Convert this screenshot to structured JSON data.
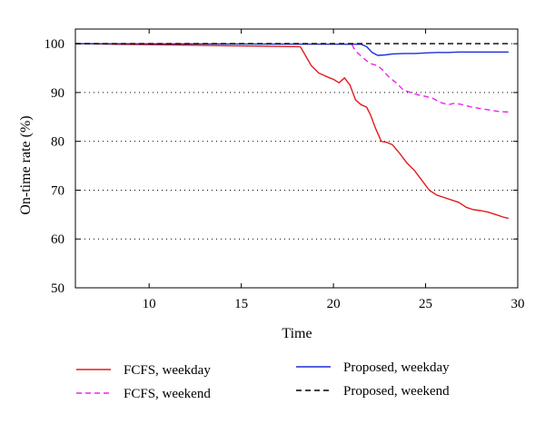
{
  "chart_data": {
    "type": "line",
    "title": "",
    "xlabel": "Time",
    "ylabel": "On-time rate (%)",
    "xlim": [
      6,
      30
    ],
    "ylim": [
      50,
      103
    ],
    "xticks": [
      10,
      15,
      20,
      25,
      30
    ],
    "yticks": [
      50,
      60,
      70,
      80,
      90,
      100
    ],
    "grid": "dotted horizontal",
    "legend_position": "below",
    "series": [
      {
        "name": "FCFS, weekday",
        "color": "#e41a1c",
        "dash": "solid",
        "x": [
          6,
          8,
          10,
          12,
          14,
          16,
          18.2,
          18.5,
          18.8,
          19.2,
          19.5,
          19.8,
          20.0,
          20.3,
          20.6,
          20.9,
          21.2,
          21.5,
          21.8,
          22.0,
          22.3,
          22.6,
          22.9,
          23.2,
          23.6,
          24.0,
          24.4,
          24.8,
          25.2,
          25.6,
          26.0,
          26.4,
          26.8,
          27.2,
          27.6,
          28.0,
          28.4,
          28.8,
          29.2,
          29.5
        ],
        "y": [
          100,
          99.9,
          99.8,
          99.7,
          99.6,
          99.5,
          99.4,
          97.5,
          95.5,
          94.0,
          93.5,
          93.0,
          92.7,
          92.0,
          93.0,
          91.5,
          88.5,
          87.5,
          87.0,
          85.5,
          82.5,
          80.0,
          79.8,
          79.3,
          77.5,
          75.5,
          74.0,
          72.0,
          70.0,
          69.0,
          68.5,
          68.0,
          67.5,
          66.5,
          66.0,
          65.8,
          65.5,
          65.0,
          64.5,
          64.2
        ]
      },
      {
        "name": "FCFS, weekend",
        "color": "#ee22ee",
        "dash": "dashed",
        "x": [
          21.0,
          21.2,
          21.5,
          21.8,
          22.1,
          22.4,
          22.7,
          23.0,
          23.4,
          23.8,
          24.2,
          24.6,
          25.0,
          25.4,
          25.8,
          26.2,
          26.6,
          27.0,
          27.5,
          28.0,
          28.5,
          29.0,
          29.5
        ],
        "y": [
          99.8,
          98.5,
          97.5,
          96.5,
          95.8,
          95.5,
          94.5,
          93.2,
          92.0,
          90.5,
          90.0,
          89.5,
          89.2,
          88.8,
          88.0,
          87.5,
          87.8,
          87.5,
          87.0,
          86.7,
          86.4,
          86.1,
          86.0
        ]
      },
      {
        "name": "Proposed, weekday",
        "color": "#1f2fd6",
        "dash": "solid",
        "x": [
          6,
          21.5,
          21.8,
          22.1,
          22.4,
          22.8,
          23.2,
          23.8,
          24.4,
          25.0,
          25.6,
          26.2,
          26.8,
          27.4,
          28.0,
          29.5
        ],
        "y": [
          100,
          99.9,
          99.4,
          98.2,
          97.6,
          97.7,
          97.9,
          98.0,
          98.0,
          98.1,
          98.2,
          98.2,
          98.3,
          98.3,
          98.3,
          98.3
        ]
      },
      {
        "name": "Proposed, weekend",
        "color": "#000000",
        "dash": "dashed",
        "x": [
          6,
          29.5
        ],
        "y": [
          100,
          100
        ]
      }
    ]
  }
}
